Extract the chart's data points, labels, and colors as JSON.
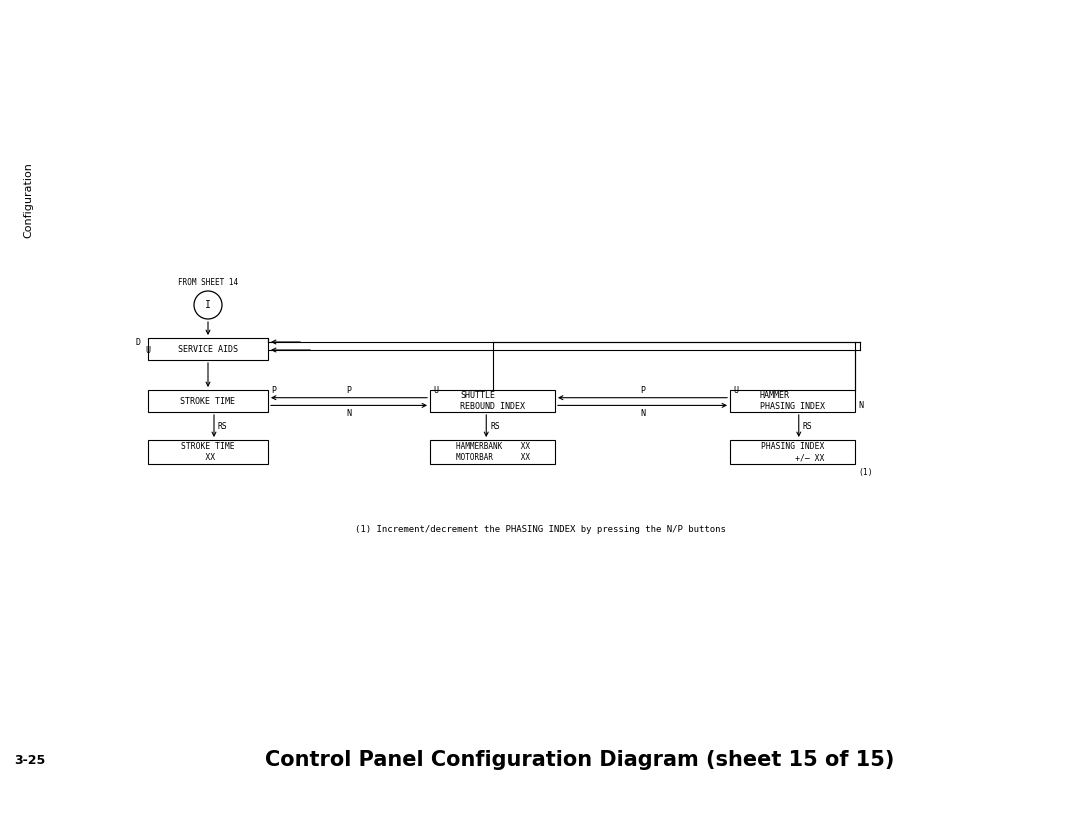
{
  "title": "Control Panel Configuration Diagram (sheet 15 of 15)",
  "page_label": "3-25",
  "side_label": "Configuration",
  "footnote": "(1) Increment/decrement the PHASING INDEX by pressing the N/P buttons",
  "from_sheet_label": "FROM SHEET 14",
  "circle_label": "I",
  "bg_color": "#ffffff",
  "note1": "(1)"
}
